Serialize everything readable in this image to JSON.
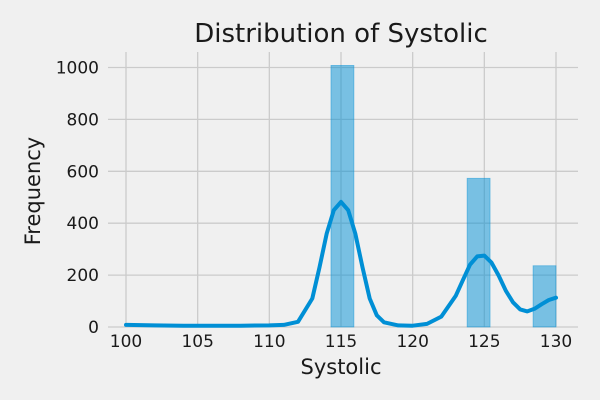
{
  "chart_data": {
    "type": "bar",
    "title": "Distribution of Systolic",
    "xlabel": "Systolic",
    "ylabel": "Frequency",
    "xlim": [
      100,
      130
    ],
    "ylim": [
      0,
      1000
    ],
    "x_ticks": [
      100,
      105,
      110,
      115,
      120,
      125,
      130
    ],
    "y_ticks": [
      0,
      200,
      400,
      600,
      800,
      1000
    ],
    "grid": true,
    "bins": [
      {
        "x0": 114.3,
        "x1": 115.9,
        "value": 1008
      },
      {
        "x0": 123.8,
        "x1": 125.4,
        "value": 573
      },
      {
        "x0": 128.4,
        "x1": 130.0,
        "value": 236
      }
    ],
    "kde": {
      "x": [
        100,
        102,
        104,
        106,
        108,
        110,
        111,
        112,
        113,
        113.5,
        114,
        114.5,
        115,
        115.5,
        116,
        116.5,
        117,
        117.5,
        118,
        119,
        120,
        121,
        122,
        123,
        123.5,
        124,
        124.5,
        125,
        125.5,
        126,
        126.5,
        127,
        127.5,
        128,
        128.5,
        129,
        129.5,
        130
      ],
      "y": [
        8,
        6,
        5,
        5,
        5,
        6,
        8,
        20,
        110,
        230,
        360,
        450,
        482,
        450,
        360,
        230,
        110,
        45,
        18,
        6,
        5,
        12,
        40,
        120,
        180,
        240,
        272,
        275,
        248,
        198,
        140,
        95,
        68,
        60,
        70,
        88,
        104,
        113
      ]
    },
    "colors": {
      "series": "#008fd5",
      "background": "#f0f0f0",
      "grid": "#cbcbcb"
    }
  }
}
